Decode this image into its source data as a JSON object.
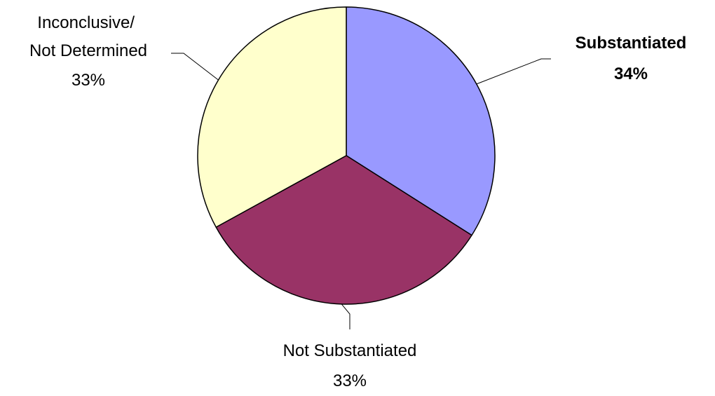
{
  "chart_data": {
    "type": "pie",
    "title": "",
    "slices": [
      {
        "label": "Substantiated",
        "percent_label": "34%",
        "value": 34,
        "color": "#9999ff",
        "emphasis": "bold"
      },
      {
        "label": "Not Substantiated",
        "percent_label": "33%",
        "value": 33,
        "color": "#993366",
        "emphasis": "normal"
      },
      {
        "label": "Inconclusive/Not Determined",
        "percent_label": "33%",
        "value": 33,
        "color": "#ffffcc",
        "emphasis": "normal"
      }
    ],
    "start_angle": "12 o'clock",
    "direction": "clockwise",
    "outline_color": "#000000",
    "legend": "none"
  }
}
